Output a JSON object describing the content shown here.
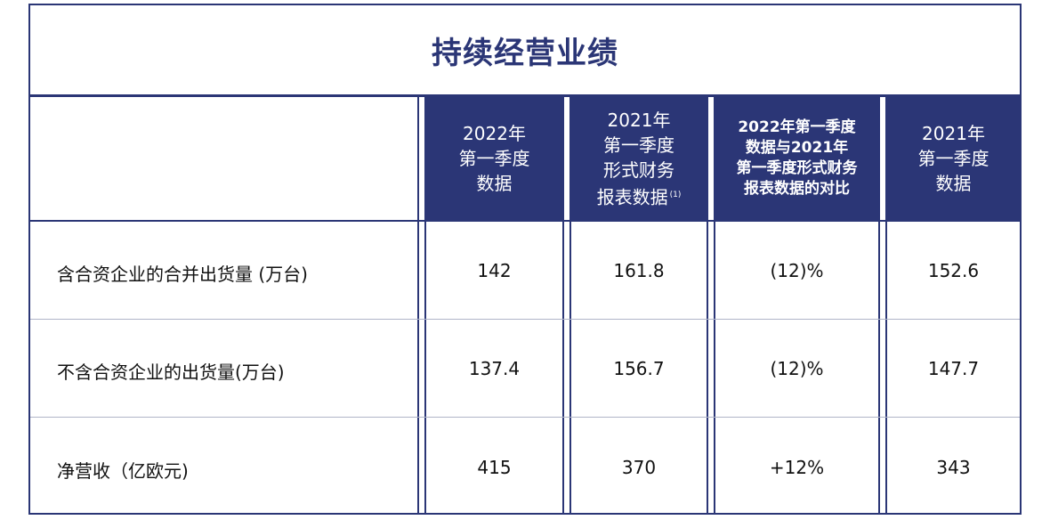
{
  "title": "持续经营业绩",
  "headers": {
    "col1": [
      "2022年",
      "第一季度",
      "数据"
    ],
    "col2": [
      "2021年",
      "第一季度",
      "形式财务",
      "报表数据"
    ],
    "col2_footnote": "(1)",
    "col3": [
      "2022年第一季度",
      "数据与2021年",
      "第一季度形式财务",
      "报表数据的对比"
    ],
    "col4": [
      "2021年",
      "第一季度",
      "数据"
    ]
  },
  "rows": [
    {
      "label": "含合资企业的合并出货量 (万台)",
      "values": [
        "142",
        "161.8",
        "(12)%",
        "152.6"
      ]
    },
    {
      "label": "不含合资企业的出货量(万台)",
      "values": [
        "137.4",
        "156.7",
        "(12)%",
        "147.7"
      ]
    },
    {
      "label": "净营收（亿欧元)",
      "values": [
        "415",
        "370",
        "+12%",
        "343"
      ]
    }
  ],
  "colors": {
    "navy": "#2b3676"
  }
}
